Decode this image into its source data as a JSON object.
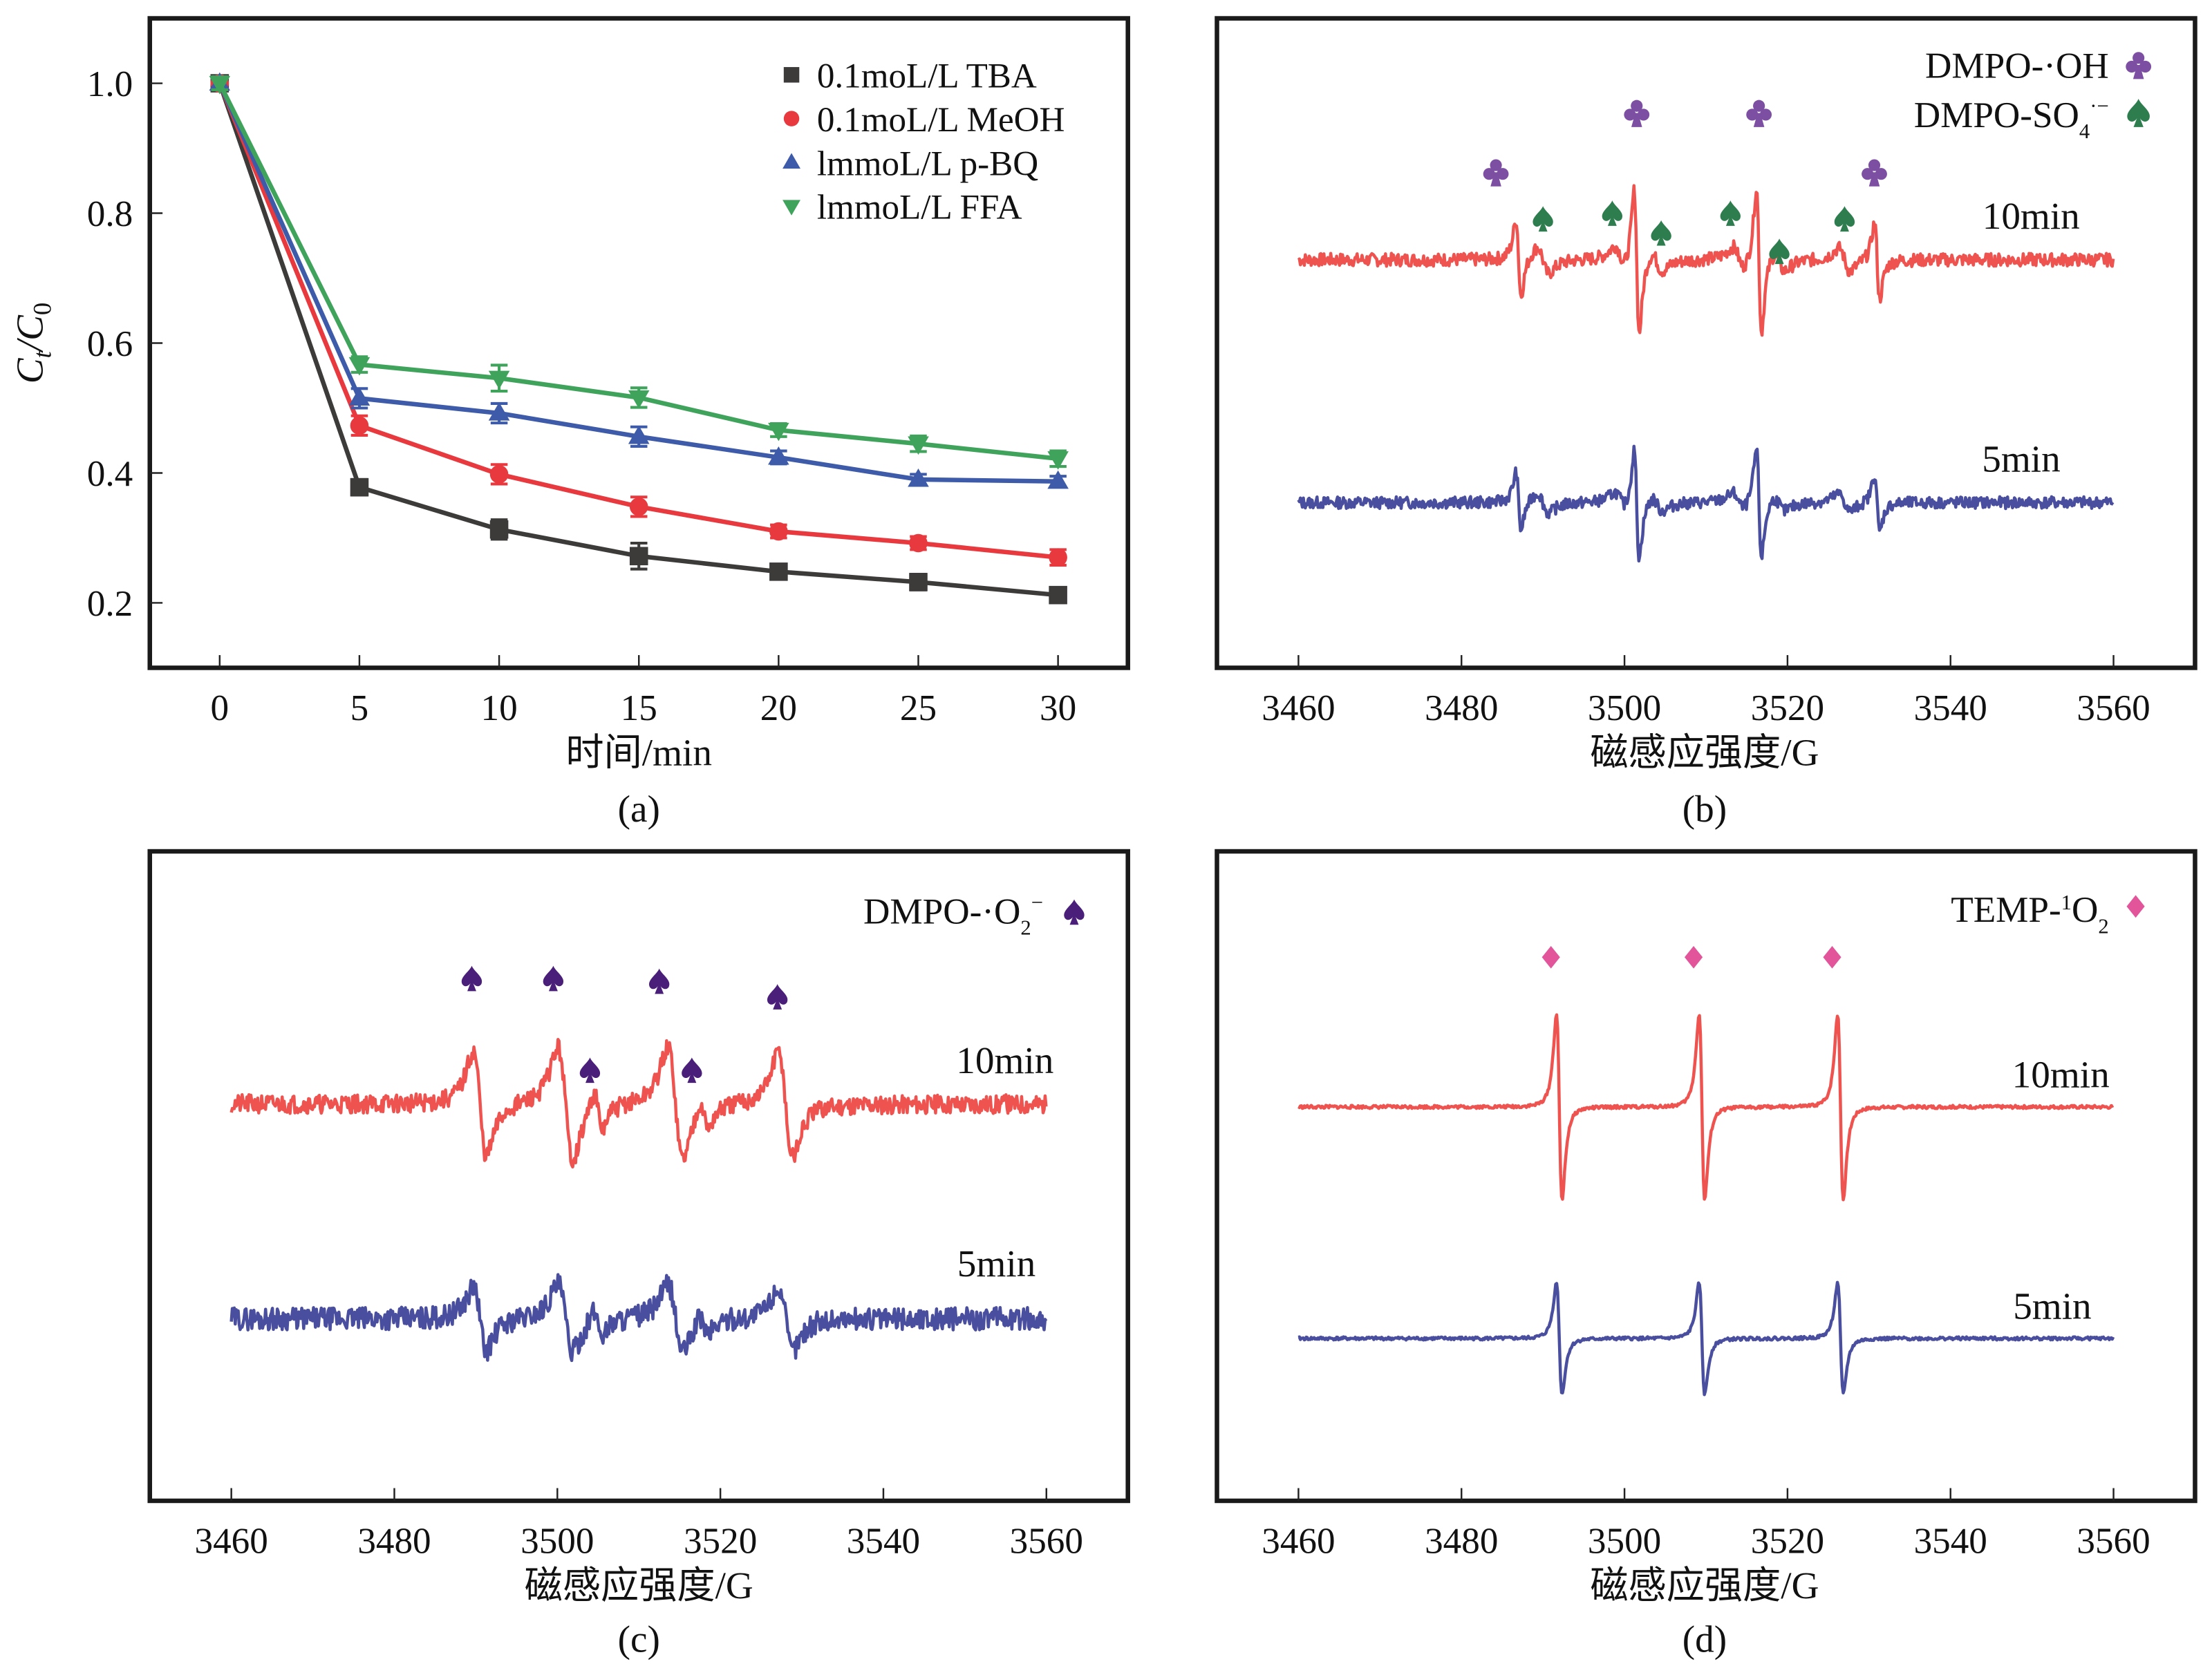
{
  "chart_data": [
    {
      "panel": "(a)",
      "type": "line",
      "xlabel": "时间/min",
      "ylabel": "Ct/C0",
      "ylabel_main": "C",
      "ylabel_sub1": "t",
      "ylabel_mid": "/C",
      "ylabel_sub2": "0",
      "x": [
        0,
        5,
        10,
        15,
        20,
        25,
        30
      ],
      "xticks": [
        "0",
        "5",
        "10",
        "15",
        "20",
        "25",
        "30"
      ],
      "yticks": [
        "0.2",
        "0.4",
        "0.6",
        "0.8",
        "1.0"
      ],
      "ytick_values": [
        0.2,
        0.4,
        0.6,
        0.8,
        1.0
      ],
      "xlim": [
        -2.5,
        32.5
      ],
      "ylim": [
        0.1,
        1.1
      ],
      "legend_position": "top-right",
      "series": [
        {
          "name": "0.1moL/L TBA",
          "marker": "square",
          "color": "#3d3a3a",
          "values": [
            1.0,
            0.378,
            0.313,
            0.272,
            0.248,
            0.232,
            0.212
          ],
          "errors": [
            0.01,
            0.012,
            0.015,
            0.02,
            0.01,
            0.012,
            0.008
          ]
        },
        {
          "name": "0.1moL/L MeOH",
          "marker": "circle",
          "color": "#e8393e",
          "values": [
            1.0,
            0.473,
            0.398,
            0.348,
            0.31,
            0.292,
            0.27
          ],
          "errors": [
            0.01,
            0.015,
            0.015,
            0.015,
            0.01,
            0.01,
            0.012
          ]
        },
        {
          "name": "lmmoL/L p-BQ",
          "marker": "triangle-up",
          "color": "#3e5ba9",
          "values": [
            1.0,
            0.515,
            0.492,
            0.456,
            0.424,
            0.39,
            0.387
          ],
          "errors": [
            0.01,
            0.015,
            0.015,
            0.015,
            0.01,
            0.008,
            0.008
          ]
        },
        {
          "name": "lmmoL/L FFA",
          "marker": "triangle-down",
          "color": "#3fa35b",
          "values": [
            1.0,
            0.567,
            0.546,
            0.516,
            0.466,
            0.445,
            0.422
          ],
          "errors": [
            0.01,
            0.012,
            0.02,
            0.015,
            0.01,
            0.012,
            0.012
          ]
        }
      ]
    },
    {
      "panel": "(b)",
      "type": "line",
      "xlabel": "磁感应强度/G",
      "xticks": [
        "3460",
        "3480",
        "3500",
        "3520",
        "3540",
        "3560"
      ],
      "xtick_values": [
        3460,
        3480,
        3500,
        3520,
        3540,
        3560
      ],
      "xlim": [
        3450,
        3570
      ],
      "spectrum": "DMPO adducts: OH quartet 1:2:2:1 + SO4 sextet",
      "peaks_OH": [
        3487,
        3501,
        3516,
        3531
      ],
      "peaks_SO4": [
        3490,
        3499,
        3504,
        3513,
        3519,
        3527
      ],
      "series": [
        {
          "name": "10min",
          "color": "#ef5350"
        },
        {
          "name": "5min",
          "color": "#4a4e9e"
        }
      ],
      "legend": [
        {
          "label_main": "DMPO-·OH",
          "label_sub": "",
          "label_sup": "",
          "symbol": "club",
          "color": "#7c4fa3"
        },
        {
          "label_main": "DMPO-SO",
          "label_sub": "4",
          "label_sup": "·−",
          "symbol": "spade",
          "color": "#2e7d4e"
        }
      ],
      "legend_position": "top-right"
    },
    {
      "panel": "(c)",
      "type": "line",
      "xlabel": "磁感应强度/G",
      "xticks": [
        "3460",
        "3480",
        "3500",
        "3520",
        "3540",
        "3560"
      ],
      "xtick_values": [
        3460,
        3480,
        3500,
        3520,
        3540,
        3560
      ],
      "xlim": [
        3450,
        3570
      ],
      "peaks": [
        3489,
        3499,
        3504,
        3512,
        3516,
        3527
      ],
      "series": [
        {
          "name": "10min",
          "color": "#ef5350"
        },
        {
          "name": "5min",
          "color": "#4a4e9e"
        }
      ],
      "legend": [
        {
          "label_main": "DMPO-·O",
          "label_sub": "2",
          "label_sup": "−",
          "symbol": "spade",
          "color": "#4a1f7a"
        }
      ],
      "legend_position": "top-right"
    },
    {
      "panel": "(d)",
      "type": "line",
      "xlabel": "磁感应强度/G",
      "xticks": [
        "3460",
        "3480",
        "3500",
        "3520",
        "3540",
        "3560"
      ],
      "xtick_values": [
        3460,
        3480,
        3500,
        3520,
        3540,
        3560
      ],
      "xlim": [
        3450,
        3570
      ],
      "peaks": [
        3492,
        3509,
        3526
      ],
      "series": [
        {
          "name": "10min",
          "color": "#ef5350"
        },
        {
          "name": "5min",
          "color": "#4a4e9e"
        }
      ],
      "legend": [
        {
          "label_pre": "TEMP-",
          "label_sup": "1",
          "label_main": "O",
          "label_sub": "2",
          "symbol": "diamond",
          "color": "#e2559b"
        }
      ],
      "legend_position": "top-right"
    }
  ]
}
